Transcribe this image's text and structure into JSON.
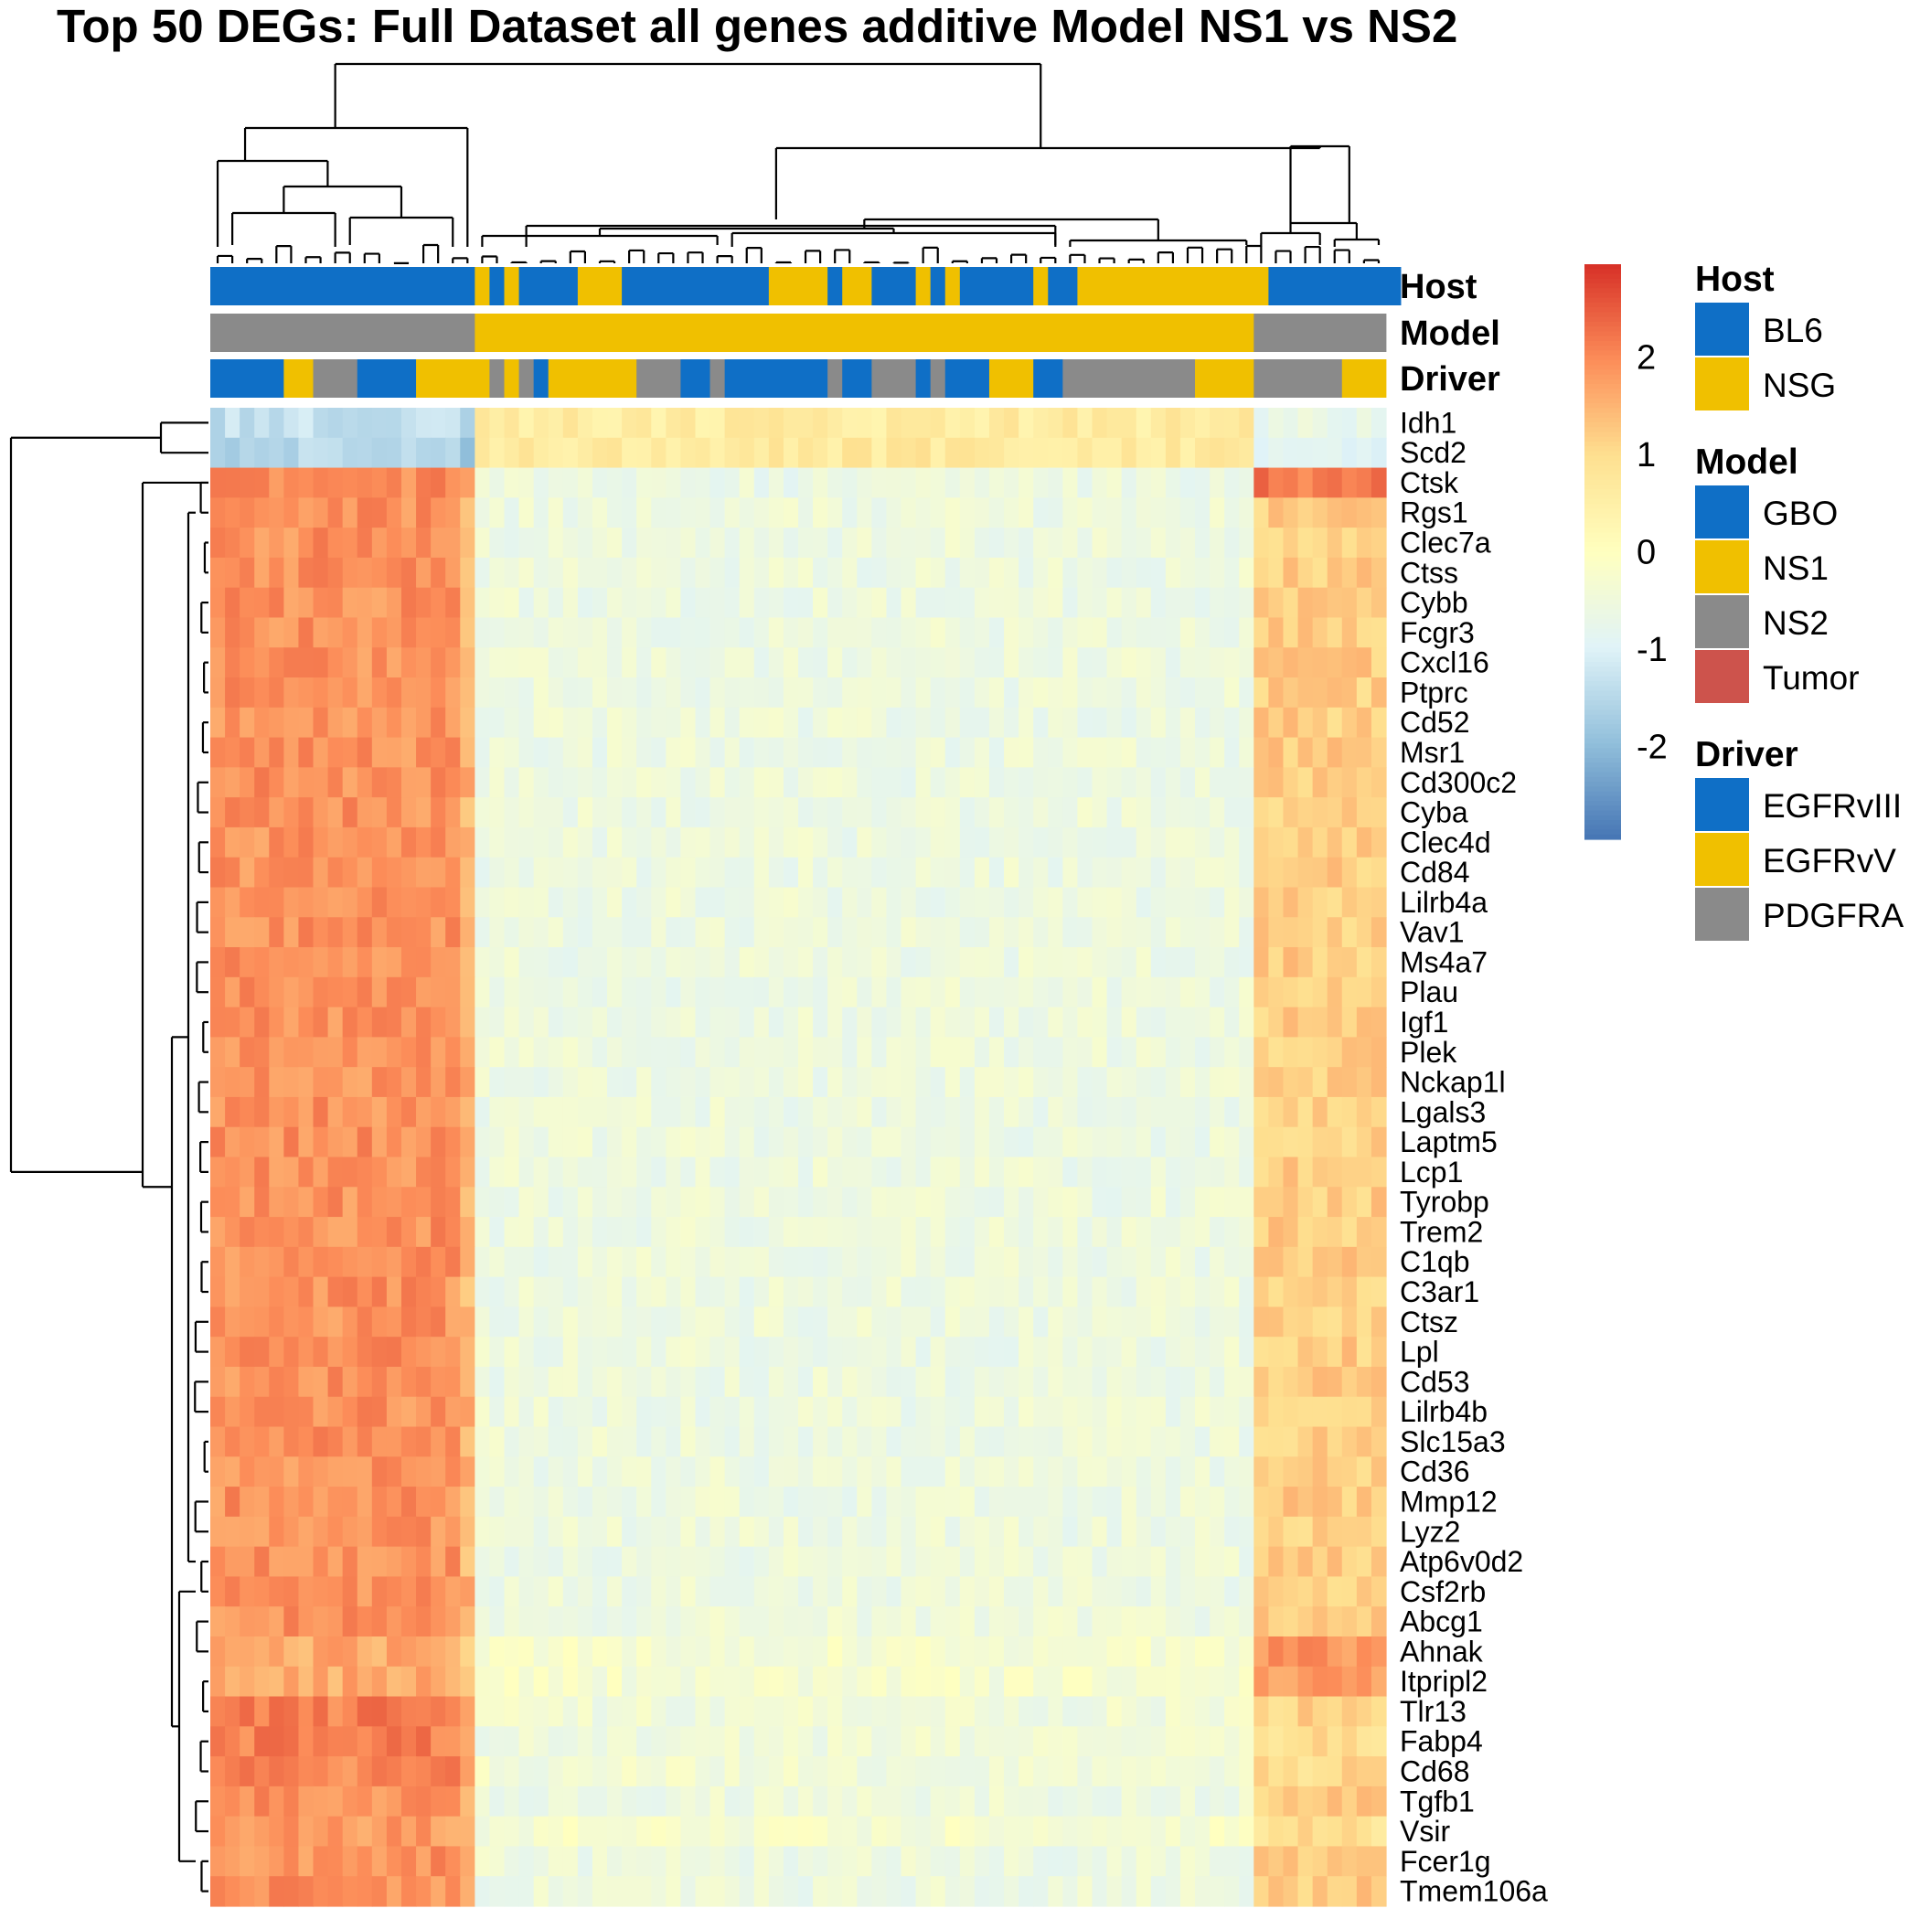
{
  "chart_data": {
    "type": "heatmap",
    "title": "Top 50 DEGs: Full Dataset all genes additive Model NS1 vs NS2",
    "genes": [
      "Idh1",
      "Scd2",
      "Ctsk",
      "Rgs1",
      "Clec7a",
      "Ctss",
      "Cybb",
      "Fcgr3",
      "Cxcl16",
      "Ptprc",
      "Cd52",
      "Msr1",
      "Cd300c2",
      "Cyba",
      "Clec4d",
      "Cd84",
      "Lilrb4a",
      "Vav1",
      "Ms4a7",
      "Plau",
      "Igf1",
      "Plek",
      "Nckap1l",
      "Lgals3",
      "Laptm5",
      "Lcp1",
      "Tyrobp",
      "Trem2",
      "C1qb",
      "C3ar1",
      "Ctsz",
      "Lpl",
      "Cd53",
      "Lilrb4b",
      "Slc15a3",
      "Cd36",
      "Mmp12",
      "Lyz2",
      "Atp6v0d2",
      "Csf2rb",
      "Abcg1",
      "Ahnak",
      "Itpripl2",
      "Tlr13",
      "Fabp4",
      "Cd68",
      "Tgfb1",
      "Vsir",
      "Fcer1g",
      "Tmem106a"
    ],
    "n_samples": 80,
    "sample_blocks": [
      {
        "samples": 18,
        "level": 1.9
      },
      {
        "samples": 53,
        "level": -0.55
      },
      {
        "samples": 9,
        "level": 1.2
      }
    ],
    "row_profiles": {
      "Idh1": [
        -1.3,
        0.6,
        -0.7
      ],
      "Scd2": [
        -1.5,
        0.7,
        -0.9
      ],
      "Ctsk": [
        2.0,
        -0.6,
        2.2
      ],
      "Ahnak": [
        1.6,
        -0.3,
        1.9
      ],
      "Itpripl2": [
        1.6,
        -0.3,
        1.8
      ],
      "Tlr13": [
        2.1,
        -0.45,
        1.1
      ],
      "Fabp4": [
        2.1,
        -0.45,
        1.0
      ],
      "Cd68": [
        2.0,
        -0.4,
        1.0
      ],
      "Vsir": [
        1.8,
        -0.3,
        0.9
      ]
    },
    "annotation_tracks": [
      {
        "name": "Host",
        "segments": [
          [
            "BL6",
            18
          ],
          [
            "NSG",
            1
          ],
          [
            "BL6",
            1
          ],
          [
            "NSG",
            1
          ],
          [
            "BL6",
            4
          ],
          [
            "NSG",
            3
          ],
          [
            "BL6",
            10
          ],
          [
            "NSG",
            4
          ],
          [
            "BL6",
            1
          ],
          [
            "NSG",
            2
          ],
          [
            "BL6",
            3
          ],
          [
            "NSG",
            1
          ],
          [
            "BL6",
            1
          ],
          [
            "NSG",
            1
          ],
          [
            "BL6",
            5
          ],
          [
            "NSG",
            1
          ],
          [
            "BL6",
            2
          ],
          [
            "NSG",
            13
          ],
          [
            "BL6",
            9
          ]
        ]
      },
      {
        "name": "Model",
        "segments": [
          [
            "NS2",
            18
          ],
          [
            "NS1",
            53
          ],
          [
            "NS2",
            9
          ]
        ]
      },
      {
        "name": "Driver",
        "segments": [
          [
            "EGFRvIII",
            5
          ],
          [
            "EGFRvV",
            2
          ],
          [
            "PDGFRA",
            3
          ],
          [
            "EGFRvIII",
            4
          ],
          [
            "EGFRvV",
            5
          ],
          [
            "PDGFRA",
            1
          ],
          [
            "EGFRvV",
            1
          ],
          [
            "PDGFRA",
            1
          ],
          [
            "EGFRvIII",
            1
          ],
          [
            "EGFRvV",
            6
          ],
          [
            "PDGFRA",
            3
          ],
          [
            "EGFRvIII",
            2
          ],
          [
            "PDGFRA",
            1
          ],
          [
            "EGFRvIII",
            7
          ],
          [
            "PDGFRA",
            1
          ],
          [
            "EGFRvIII",
            2
          ],
          [
            "PDGFRA",
            3
          ],
          [
            "EGFRvIII",
            1
          ],
          [
            "PDGFRA",
            1
          ],
          [
            "EGFRvIII",
            3
          ],
          [
            "EGFRvV",
            3
          ],
          [
            "EGFRvIII",
            2
          ],
          [
            "PDGFRA",
            9
          ],
          [
            "EGFRvV",
            4
          ],
          [
            "PDGFRA",
            6
          ],
          [
            "EGFRvV",
            3
          ]
        ]
      }
    ],
    "color_scale": {
      "ticks": [
        "2",
        "1",
        "0",
        "-1",
        "-2"
      ],
      "tick_values": [
        2,
        1,
        0,
        -1,
        -2
      ],
      "min": -2.95,
      "max": 2.95,
      "colors": [
        "#4575b4",
        "#91bfdb",
        "#e0f3f8",
        "#ffffbf",
        "#fee090",
        "#fc8d59",
        "#d73027"
      ]
    },
    "legends": [
      {
        "title": "Host",
        "items": [
          {
            "label": "BL6",
            "color": "#0f6fc6"
          },
          {
            "label": "NSG",
            "color": "#f0c000"
          }
        ]
      },
      {
        "title": "Model",
        "items": [
          {
            "label": "GBO",
            "color": "#0f6fc6"
          },
          {
            "label": "NS1",
            "color": "#f0c000"
          },
          {
            "label": "NS2",
            "color": "#8a8a8a"
          },
          {
            "label": "Tumor",
            "color": "#cd534c"
          }
        ]
      },
      {
        "title": "Driver",
        "items": [
          {
            "label": "EGFRvIII",
            "color": "#0f6fc6"
          },
          {
            "label": "EGFRvV",
            "color": "#f0c000"
          },
          {
            "label": "PDGFRA",
            "color": "#8a8a8a"
          }
        ]
      }
    ]
  }
}
